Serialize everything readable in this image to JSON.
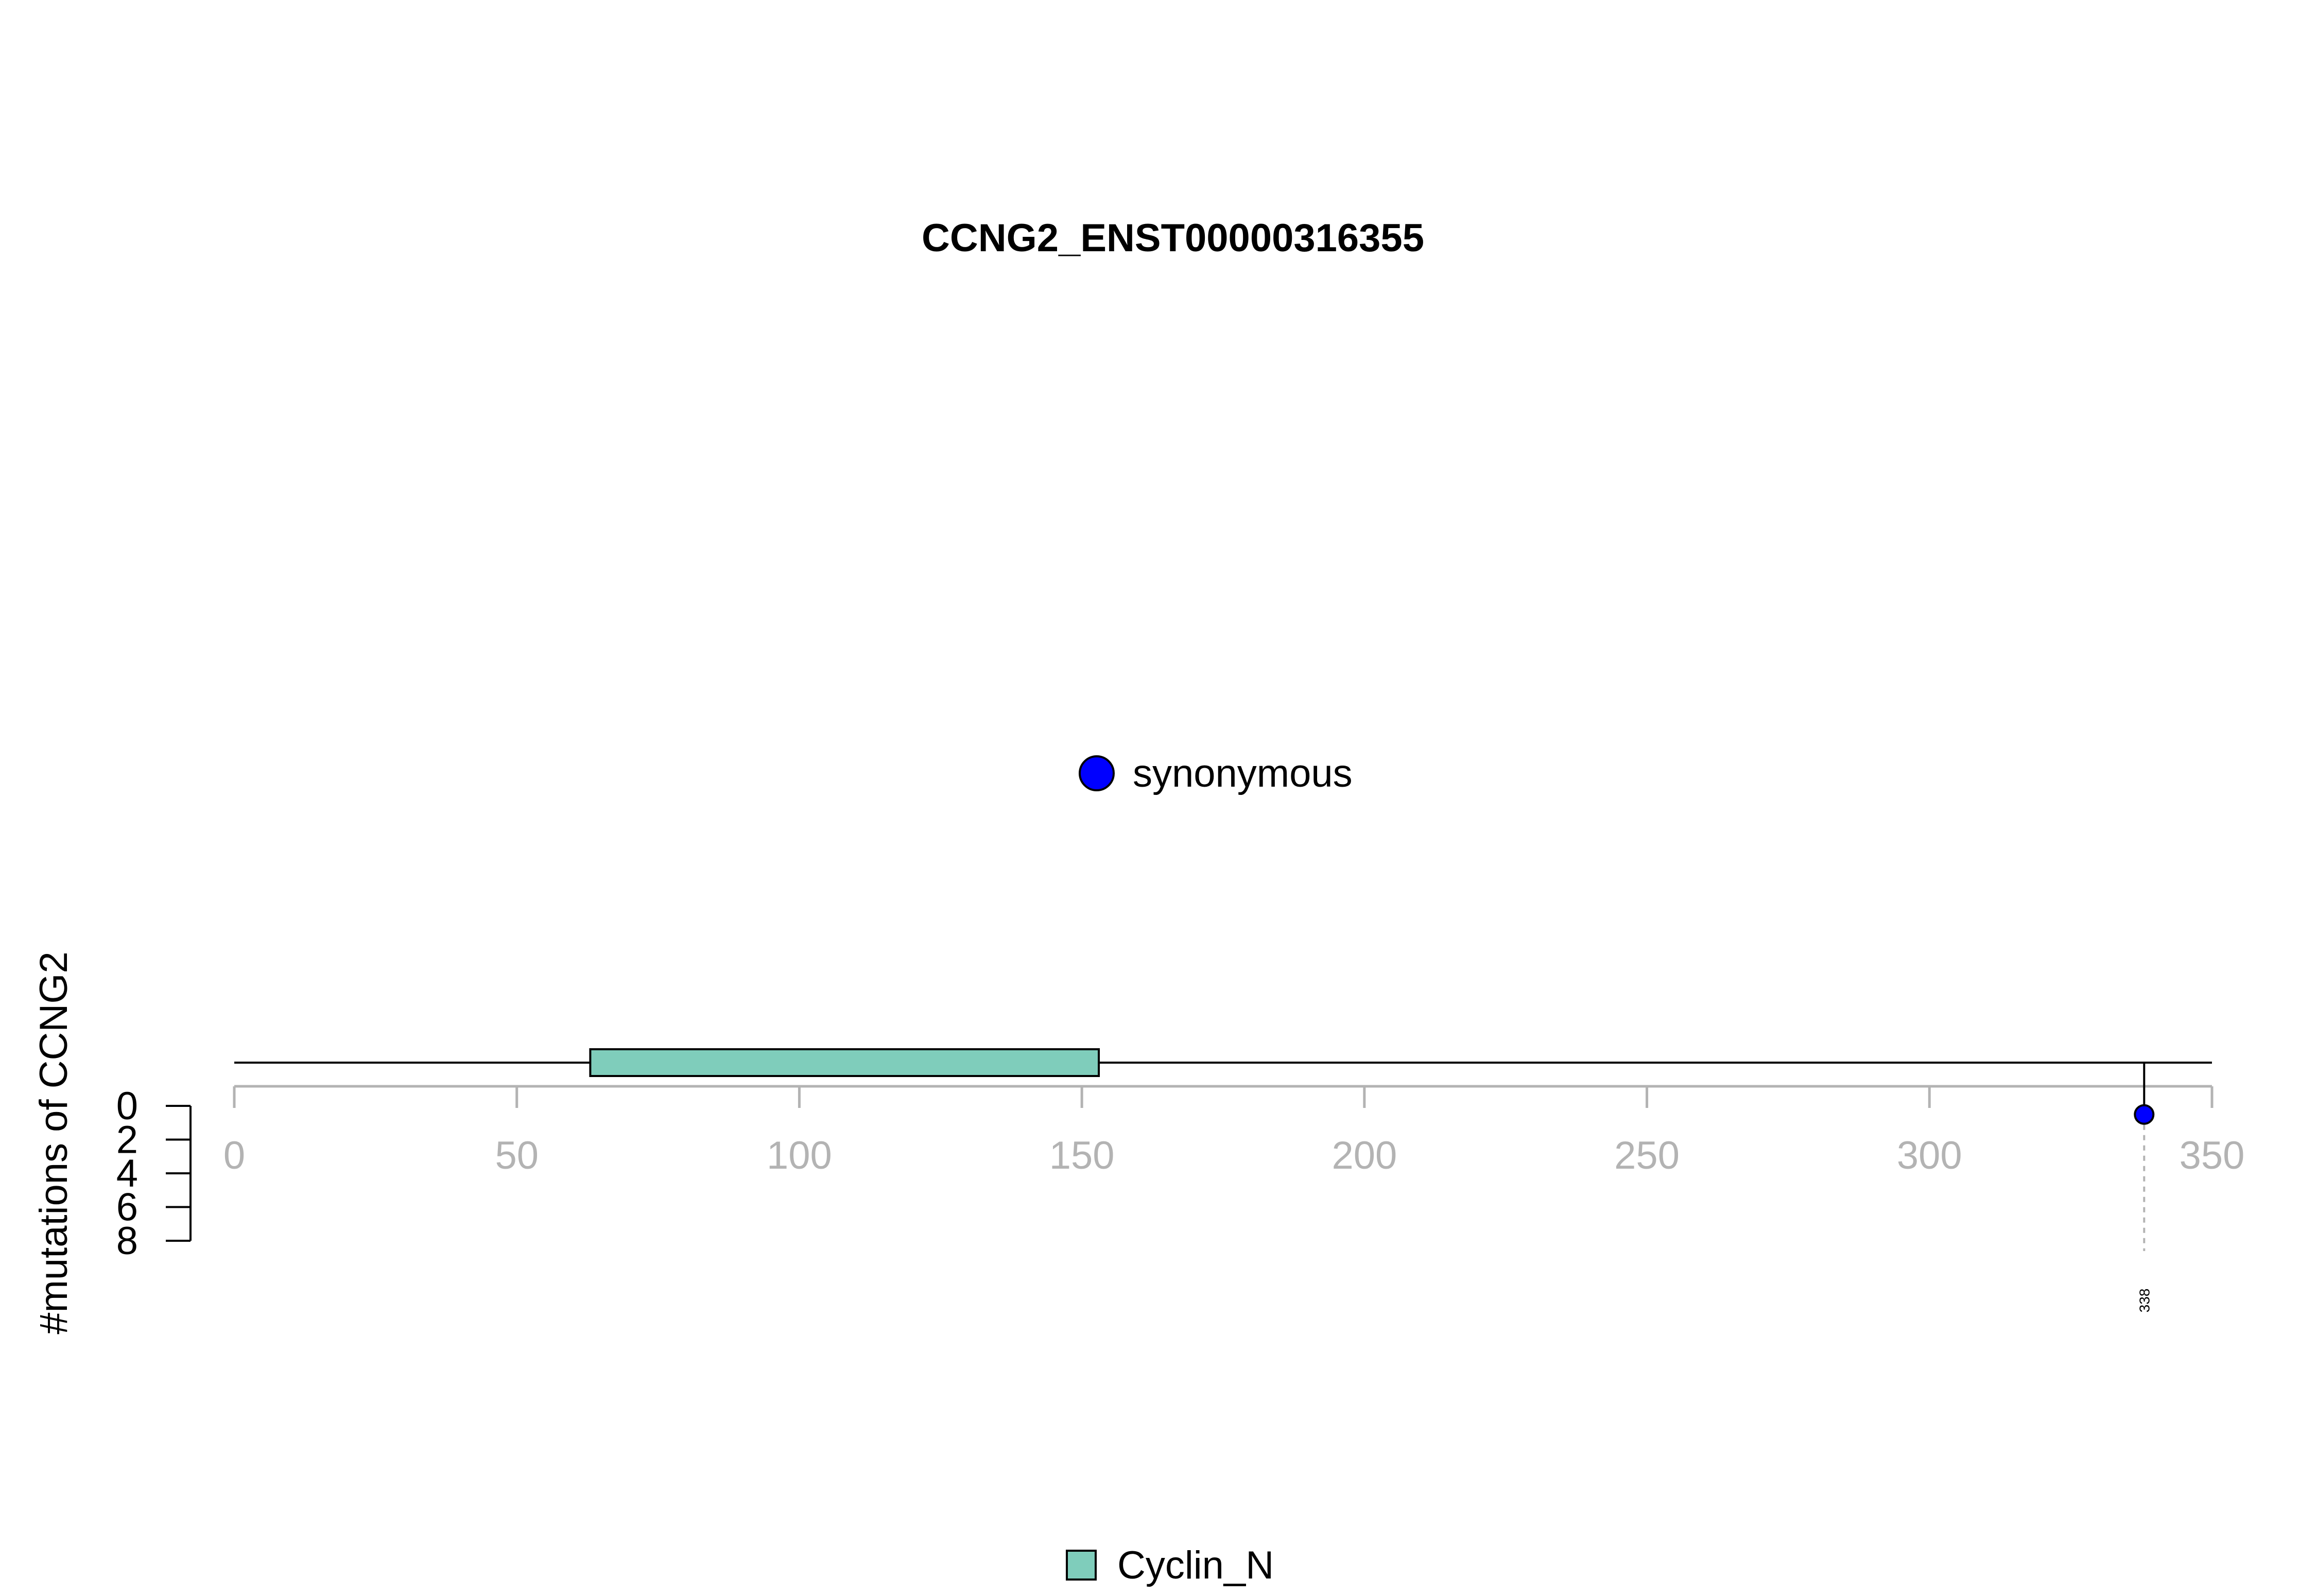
{
  "chart_data": {
    "type": "lollipop",
    "title": "CCNG2_ENST00000316355",
    "ylabel": "#mutations of CCNG2",
    "x_axis": {
      "range": [
        0,
        350
      ],
      "ticks": [
        0,
        50,
        100,
        150,
        200,
        250,
        300,
        350
      ],
      "tick_labels": [
        "0",
        "50",
        "100",
        "150",
        "200",
        "250",
        "300",
        "350"
      ]
    },
    "y_axis": {
      "range": [
        0,
        8
      ],
      "ticks": [
        0,
        2,
        4,
        6,
        8
      ],
      "tick_labels": [
        "0",
        "2",
        "4",
        "6",
        "8"
      ],
      "direction": "downward"
    },
    "protein_length": 350,
    "domains": [
      {
        "name": "Cyclin_N",
        "start": 63,
        "end": 153,
        "color": "#7fcdbb"
      }
    ],
    "mutations": [
      {
        "position": 338,
        "count": 1,
        "type": "synonymous",
        "label": "338"
      }
    ],
    "mutation_legend": [
      {
        "label": "synonymous",
        "color": "#0000ff"
      }
    ],
    "domain_legend": [
      {
        "label": "Cyclin_N",
        "color": "#7fcdbb"
      }
    ],
    "colors": {
      "axis_grey": "#b3b3b3",
      "line": "#000000",
      "synonymous": "#0000ff",
      "domain_fill": "#7fcdbb"
    }
  }
}
